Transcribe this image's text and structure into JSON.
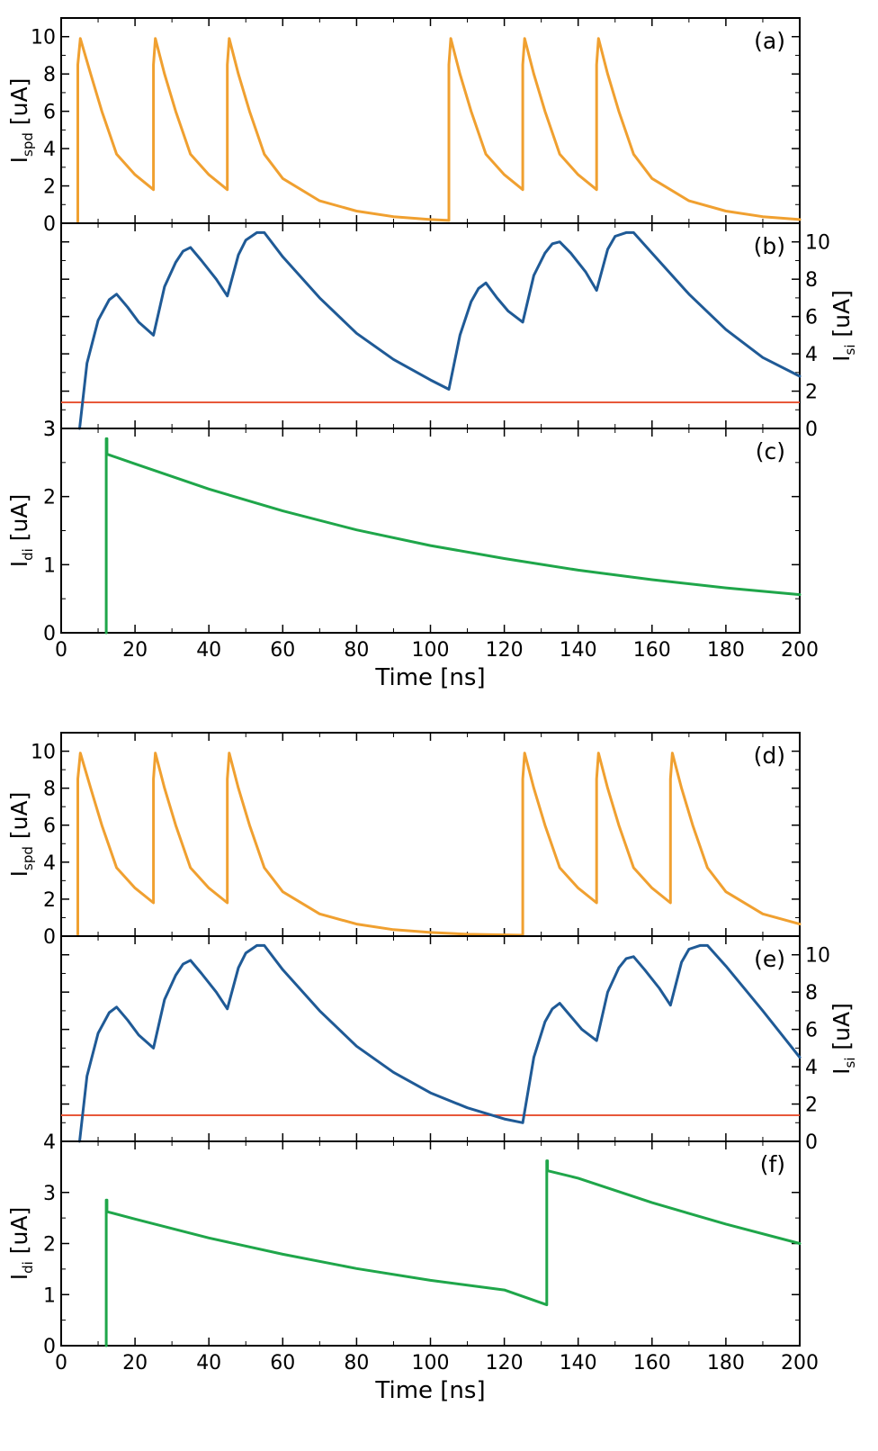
{
  "colors": {
    "spd": "#f0a030",
    "si": "#1f5a96",
    "di": "#1fa64a",
    "threshold": "#e8583a",
    "axis": "#000000"
  },
  "chart_data": [
    {
      "panel": "a",
      "type": "line",
      "label": "(a)",
      "ylabel_main": "I",
      "ylabel_sub": "spd",
      "ylabel_unit": " [uA]",
      "yaxis_side": "left",
      "ylim": [
        0,
        11
      ],
      "xlim": [
        0,
        200
      ],
      "yticks": [
        0,
        2,
        4,
        6,
        8,
        10
      ],
      "series": [
        {
          "color": "spd",
          "x": [
            4.5,
            4.5,
            5.2,
            8,
            11,
            15,
            20,
            25,
            25,
            25.5,
            28,
            31,
            35,
            40,
            45,
            45,
            45.5,
            48,
            51,
            55,
            60,
            70,
            80,
            90,
            100,
            105,
            105,
            105.5,
            108,
            111,
            115,
            120,
            125,
            125,
            125.5,
            128,
            131,
            135,
            140,
            145,
            145,
            145.5,
            148,
            151,
            155,
            160,
            170,
            180,
            190,
            200
          ],
          "y": [
            0.1,
            8.5,
            9.9,
            8.0,
            6.0,
            3.7,
            2.6,
            1.8,
            8.5,
            9.9,
            8.0,
            6.0,
            3.7,
            2.6,
            1.8,
            8.5,
            9.9,
            8.0,
            6.0,
            3.7,
            2.4,
            1.2,
            0.65,
            0.35,
            0.2,
            0.15,
            8.5,
            9.9,
            8.0,
            6.0,
            3.7,
            2.6,
            1.8,
            8.5,
            9.9,
            8.0,
            6.0,
            3.7,
            2.6,
            1.8,
            8.5,
            9.9,
            8.0,
            6.0,
            3.7,
            2.4,
            1.2,
            0.65,
            0.35,
            0.2
          ]
        }
      ]
    },
    {
      "panel": "b",
      "type": "line",
      "label": "(b)",
      "ylabel_main": "I",
      "ylabel_sub": "si",
      "ylabel_unit": " [uA]",
      "yaxis_side": "right",
      "ylim": [
        0,
        11
      ],
      "xlim": [
        0,
        200
      ],
      "yticks": [
        0,
        2,
        4,
        6,
        8,
        10
      ],
      "threshold": 1.4,
      "series": [
        {
          "color": "si",
          "x": [
            5,
            7,
            10,
            13,
            15,
            18,
            21,
            25,
            28,
            31,
            33,
            35,
            38,
            42,
            45,
            48,
            50,
            53,
            55,
            60,
            70,
            80,
            90,
            100,
            105,
            108,
            111,
            113,
            115,
            118,
            121,
            125,
            128,
            131,
            133,
            135,
            138,
            142,
            145,
            148,
            150,
            153,
            155,
            160,
            170,
            180,
            190,
            200
          ],
          "y": [
            0,
            3.5,
            5.8,
            6.9,
            7.2,
            6.5,
            5.7,
            5.0,
            7.6,
            8.9,
            9.5,
            9.7,
            9.0,
            8.0,
            7.1,
            9.3,
            10.1,
            10.5,
            10.5,
            9.2,
            7.0,
            5.1,
            3.7,
            2.6,
            2.1,
            5.0,
            6.8,
            7.5,
            7.8,
            7.0,
            6.3,
            5.7,
            8.2,
            9.4,
            9.9,
            10.0,
            9.4,
            8.4,
            7.4,
            9.6,
            10.3,
            10.5,
            10.5,
            9.4,
            7.2,
            5.3,
            3.8,
            2.8
          ]
        }
      ]
    },
    {
      "panel": "c",
      "type": "line",
      "label": "(c)",
      "ylabel_main": "I",
      "ylabel_sub": "di",
      "ylabel_unit": " [uA]",
      "yaxis_side": "left",
      "ylim": [
        0,
        3
      ],
      "xlim": [
        0,
        200
      ],
      "yticks": [
        0,
        1,
        2,
        3
      ],
      "top_tick_label": "3",
      "xticks": [
        0,
        20,
        40,
        60,
        80,
        100,
        120,
        140,
        160,
        180,
        200
      ],
      "xlabel": "Time [ns]",
      "series": [
        {
          "color": "di",
          "x": [
            12.2,
            12.2,
            12.4,
            12.4,
            12.6,
            20,
            40,
            60,
            80,
            100,
            120,
            140,
            160,
            180,
            200
          ],
          "y": [
            0.0,
            2.85,
            2.85,
            2.62,
            2.62,
            2.48,
            2.11,
            1.79,
            1.51,
            1.28,
            1.09,
            0.92,
            0.78,
            0.66,
            0.56
          ]
        }
      ]
    },
    {
      "panel": "d",
      "type": "line",
      "label": "(d)",
      "ylabel_main": "I",
      "ylabel_sub": "spd",
      "ylabel_unit": " [uA]",
      "yaxis_side": "left",
      "ylim": [
        0,
        11
      ],
      "xlim": [
        0,
        200
      ],
      "yticks": [
        0,
        2,
        4,
        6,
        8,
        10
      ],
      "series": [
        {
          "color": "spd",
          "x": [
            4.5,
            4.5,
            5.2,
            8,
            11,
            15,
            20,
            25,
            25,
            25.5,
            28,
            31,
            35,
            40,
            45,
            45,
            45.5,
            48,
            51,
            55,
            60,
            70,
            80,
            90,
            100,
            110,
            125,
            125,
            125.5,
            128,
            131,
            135,
            140,
            145,
            145,
            145.5,
            148,
            151,
            155,
            160,
            165,
            165,
            165.5,
            168,
            171,
            175,
            180,
            190,
            200
          ],
          "y": [
            0.1,
            8.5,
            9.9,
            8.0,
            6.0,
            3.7,
            2.6,
            1.8,
            8.5,
            9.9,
            8.0,
            6.0,
            3.7,
            2.6,
            1.8,
            8.5,
            9.9,
            8.0,
            6.0,
            3.7,
            2.4,
            1.2,
            0.65,
            0.35,
            0.2,
            0.1,
            0.05,
            8.5,
            9.9,
            8.0,
            6.0,
            3.7,
            2.6,
            1.8,
            8.5,
            9.9,
            8.0,
            6.0,
            3.7,
            2.6,
            1.8,
            8.5,
            9.9,
            8.0,
            6.0,
            3.7,
            2.4,
            1.2,
            0.65
          ]
        }
      ]
    },
    {
      "panel": "e",
      "type": "line",
      "label": "(e)",
      "ylabel_main": "I",
      "ylabel_sub": "si",
      "ylabel_unit": " [uA]",
      "yaxis_side": "right",
      "ylim": [
        0,
        11
      ],
      "xlim": [
        0,
        200
      ],
      "yticks": [
        0,
        2,
        4,
        6,
        8,
        10
      ],
      "threshold": 1.4,
      "series": [
        {
          "color": "si",
          "x": [
            5,
            7,
            10,
            13,
            15,
            18,
            21,
            25,
            28,
            31,
            33,
            35,
            38,
            42,
            45,
            48,
            50,
            53,
            55,
            60,
            70,
            80,
            90,
            100,
            110,
            120,
            125,
            128,
            131,
            133,
            135,
            138,
            141,
            145,
            148,
            151,
            153,
            155,
            158,
            162,
            165,
            168,
            170,
            173,
            175,
            180,
            190,
            200
          ],
          "y": [
            0,
            3.5,
            5.8,
            6.9,
            7.2,
            6.5,
            5.7,
            5.0,
            7.6,
            8.9,
            9.5,
            9.7,
            9.0,
            8.0,
            7.1,
            9.3,
            10.1,
            10.5,
            10.5,
            9.2,
            7.0,
            5.1,
            3.7,
            2.6,
            1.8,
            1.2,
            1.0,
            4.5,
            6.4,
            7.1,
            7.4,
            6.7,
            6.0,
            5.4,
            8.0,
            9.3,
            9.8,
            9.9,
            9.2,
            8.2,
            7.3,
            9.6,
            10.3,
            10.5,
            10.5,
            9.4,
            7.0,
            4.5
          ]
        }
      ]
    },
    {
      "panel": "f",
      "type": "line",
      "label": "(f)",
      "ylabel_main": "I",
      "ylabel_sub": "di",
      "ylabel_unit": " [uA]",
      "yaxis_side": "left",
      "ylim": [
        0,
        4
      ],
      "xlim": [
        0,
        200
      ],
      "yticks": [
        0,
        1,
        2,
        3
      ],
      "top_tick_label": "4",
      "xticks": [
        0,
        20,
        40,
        60,
        80,
        100,
        120,
        140,
        160,
        180,
        200
      ],
      "xlabel": "Time [ns]",
      "series": [
        {
          "color": "di",
          "x": [
            12.2,
            12.2,
            12.4,
            12.4,
            12.6,
            20,
            40,
            60,
            80,
            100,
            120,
            131.5,
            131.5,
            131.7,
            131.7,
            132,
            140,
            160,
            180,
            200
          ],
          "y": [
            0.0,
            2.85,
            2.85,
            2.62,
            2.62,
            2.48,
            2.11,
            1.79,
            1.51,
            1.28,
            1.09,
            0.8,
            3.62,
            3.62,
            3.42,
            3.42,
            3.28,
            2.8,
            2.38,
            2.0
          ]
        }
      ]
    }
  ]
}
